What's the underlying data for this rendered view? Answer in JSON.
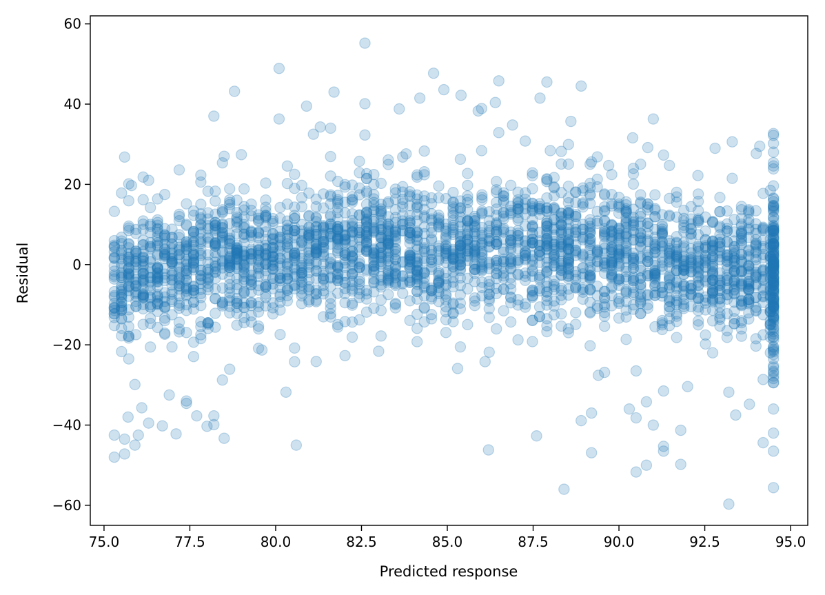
{
  "chart_data": {
    "type": "scatter",
    "title": "",
    "xlabel": "Predicted response",
    "ylabel": "Residual",
    "xlim": [
      74.6,
      95.5
    ],
    "ylim": [
      -65,
      62
    ],
    "xticks": [
      75.0,
      77.5,
      80.0,
      82.5,
      85.0,
      87.5,
      90.0,
      92.5,
      95.0
    ],
    "xtick_labels": [
      "75.0",
      "77.5",
      "80.0",
      "82.5",
      "85.0",
      "87.5",
      "90.0",
      "92.5",
      "95.0"
    ],
    "yticks": [
      -60,
      -40,
      -20,
      0,
      20,
      40,
      60
    ],
    "ytick_labels": [
      "−60",
      "−40",
      "−20",
      "0",
      "20",
      "40",
      "60"
    ],
    "grid": false,
    "marker_color": "#1f77b4",
    "marker_alpha": 0.22,
    "n_points": 3000,
    "series": [
      {
        "name": "",
        "points": [
          [
            82.6,
            55.2
          ],
          [
            80.1,
            48.9
          ],
          [
            84.6,
            47.7
          ],
          [
            86.5,
            45.8
          ],
          [
            87.9,
            45.5
          ],
          [
            88.9,
            44.5
          ],
          [
            84.9,
            43.6
          ],
          [
            78.8,
            43.2
          ],
          [
            81.7,
            43.0
          ],
          [
            80.9,
            39.5
          ],
          [
            86.0,
            38.9
          ],
          [
            85.9,
            38.3
          ],
          [
            83.6,
            38.8
          ],
          [
            82.6,
            40.1
          ],
          [
            84.2,
            41.5
          ],
          [
            85.4,
            42.2
          ],
          [
            86.4,
            40.4
          ],
          [
            87.7,
            41.5
          ],
          [
            78.2,
            37.0
          ],
          [
            80.1,
            36.3
          ],
          [
            91.0,
            36.3
          ],
          [
            88.6,
            35.7
          ],
          [
            86.9,
            34.8
          ],
          [
            81.6,
            34.0
          ],
          [
            81.3,
            34.3
          ],
          [
            81.1,
            32.5
          ],
          [
            82.6,
            32.3
          ],
          [
            86.5,
            32.9
          ],
          [
            90.4,
            31.6
          ],
          [
            93.3,
            30.6
          ],
          [
            94.5,
            30.2
          ],
          [
            92.8,
            29.0
          ],
          [
            94.1,
            29.5
          ],
          [
            89.2,
            25.6
          ],
          [
            94.0,
            27.7
          ],
          [
            75.6,
            26.8
          ],
          [
            78.5,
            27.0
          ],
          [
            79.0,
            27.4
          ],
          [
            83.8,
            27.6
          ],
          [
            86.0,
            28.4
          ],
          [
            88.0,
            28.4
          ],
          [
            89.7,
            24.7
          ],
          [
            91.3,
            27.3
          ],
          [
            92.3,
            22.2
          ],
          [
            76.3,
            21.0
          ],
          [
            75.8,
            19.7
          ],
          [
            94.5,
            25.4
          ],
          [
            93.3,
            21.5
          ],
          [
            75.3,
            -48.0
          ],
          [
            75.6,
            -47.2
          ],
          [
            75.3,
            -42.5
          ],
          [
            75.6,
            -43.5
          ],
          [
            75.9,
            -45.0
          ],
          [
            75.7,
            -38.0
          ],
          [
            76.0,
            -42.5
          ],
          [
            76.3,
            -39.5
          ],
          [
            76.7,
            -40.2
          ],
          [
            76.9,
            -32.5
          ],
          [
            77.4,
            -34.6
          ],
          [
            77.4,
            -34.0
          ],
          [
            76.1,
            -35.7
          ],
          [
            75.9,
            -29.9
          ],
          [
            77.1,
            -42.2
          ],
          [
            77.7,
            -37.7
          ],
          [
            78.0,
            -40.3
          ],
          [
            78.2,
            -39.9
          ],
          [
            78.2,
            -37.7
          ],
          [
            78.5,
            -43.3
          ],
          [
            80.3,
            -31.8
          ],
          [
            80.6,
            -45.0
          ],
          [
            86.2,
            -46.2
          ],
          [
            87.6,
            -42.7
          ],
          [
            88.4,
            -56.0
          ],
          [
            88.9,
            -38.9
          ],
          [
            89.2,
            -46.9
          ],
          [
            89.2,
            -37.0
          ],
          [
            90.3,
            -36.0
          ],
          [
            90.5,
            -38.2
          ],
          [
            90.5,
            -51.7
          ],
          [
            90.8,
            -50.0
          ],
          [
            90.8,
            -34.2
          ],
          [
            91.0,
            -40.0
          ],
          [
            91.3,
            -45.3
          ],
          [
            91.3,
            -46.5
          ],
          [
            91.3,
            -31.5
          ],
          [
            91.8,
            -41.3
          ],
          [
            91.8,
            -49.8
          ],
          [
            92.0,
            -30.4
          ],
          [
            93.2,
            -59.7
          ],
          [
            93.2,
            -31.8
          ],
          [
            93.4,
            -37.5
          ],
          [
            93.8,
            -34.8
          ],
          [
            94.2,
            -44.4
          ],
          [
            94.5,
            -55.6
          ],
          [
            94.5,
            -46.5
          ],
          [
            94.5,
            -42.0
          ],
          [
            94.5,
            -36.0
          ],
          [
            79.6,
            -21.3
          ],
          [
            83.0,
            -21.6
          ],
          [
            85.3,
            -25.9
          ],
          [
            86.1,
            -24.2
          ],
          [
            89.4,
            -27.6
          ],
          [
            90.5,
            -26.5
          ]
        ]
      }
    ]
  }
}
